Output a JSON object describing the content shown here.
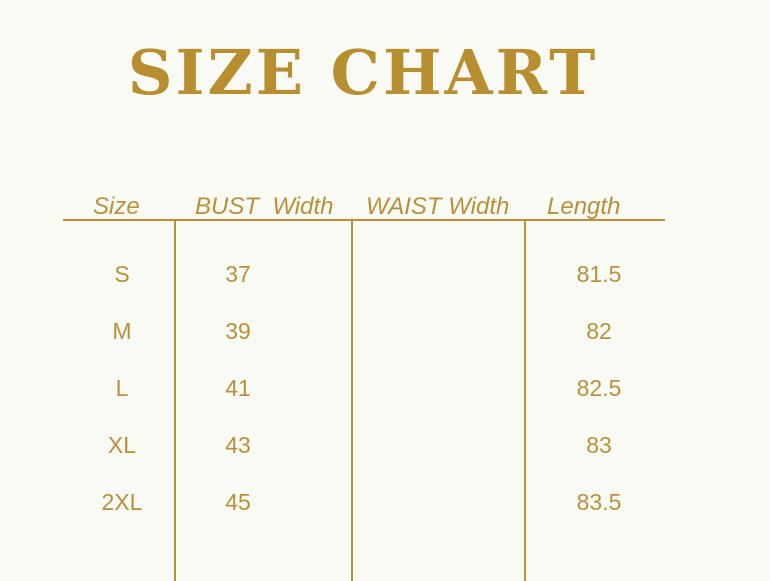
{
  "title": "SIZE CHART",
  "headers": [
    "Size",
    "BUST  Width",
    "WAIST Width",
    "Length"
  ],
  "rows": [
    {
      "size": "S",
      "bust": "37",
      "waist": "",
      "length": "81.5"
    },
    {
      "size": "M",
      "bust": "39",
      "waist": "",
      "length": "82"
    },
    {
      "size": "L",
      "bust": "41",
      "waist": "",
      "length": "82.5"
    },
    {
      "size": "XL",
      "bust": "43",
      "waist": "",
      "length": "83"
    },
    {
      "size": "2XL",
      "bust": "45",
      "waist": "",
      "length": "83.5"
    }
  ],
  "colors": {
    "accent": "#b8903a",
    "background": "#fafaf5"
  }
}
